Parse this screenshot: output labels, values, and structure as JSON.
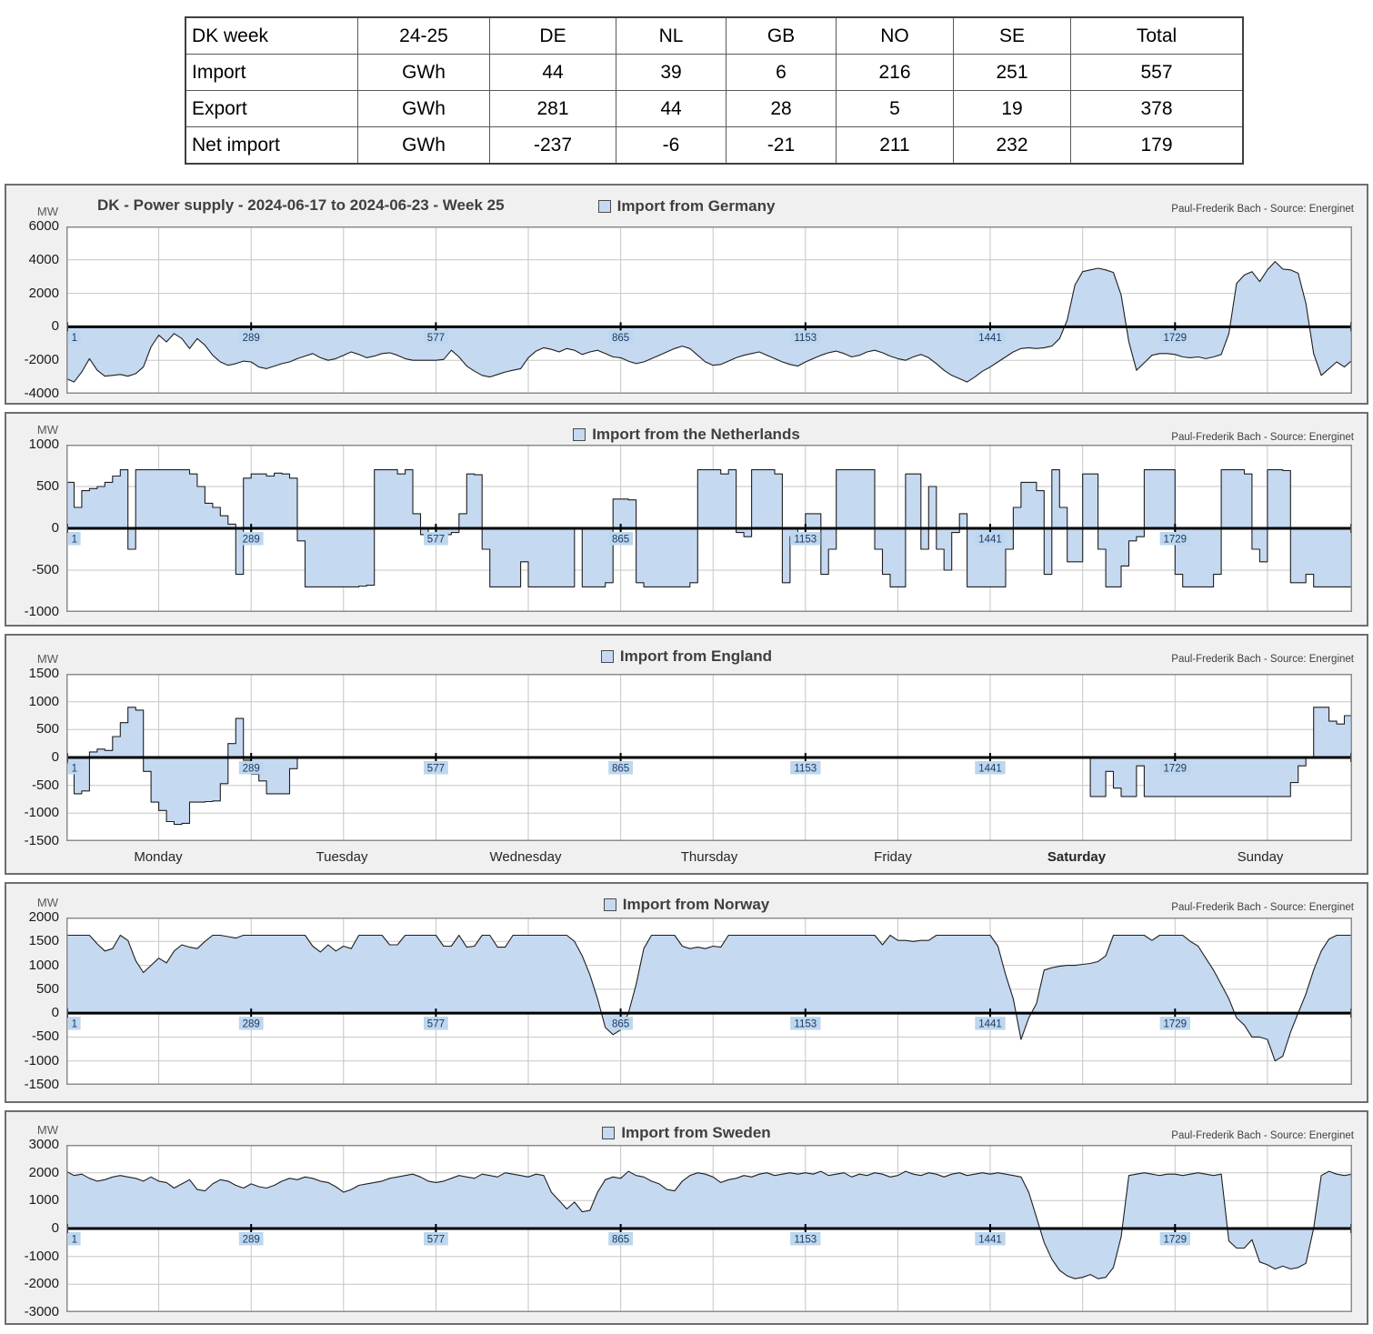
{
  "table": {
    "columns": [
      "DK week",
      "24-25",
      "DE",
      "NL",
      "GB",
      "NO",
      "SE",
      "Total"
    ],
    "rows": [
      [
        "Import",
        "GWh",
        "44",
        "39",
        "6",
        "216",
        "251",
        "557"
      ],
      [
        "Export",
        "GWh",
        "281",
        "44",
        "28",
        "5",
        "19",
        "378"
      ],
      [
        "Net import",
        "GWh",
        "-237",
        "-6",
        "-21",
        "211",
        "232",
        "179"
      ]
    ]
  },
  "colors": {
    "area_fill": "#c5d9f1",
    "line": "#1f1f1f",
    "zero_axis": "#000000",
    "grid": "#c6c6c6",
    "plot_border": "#8c8c8c",
    "panel_bg": "#f0f0f0",
    "xlabel_bg": "#bdd7ee",
    "xlabel_text": "#1f3864",
    "legend_text": "#3f3f3f"
  },
  "chart_data": [
    {
      "type": "area",
      "title": "DK - Power supply - 2024-06-17 to 2024-06-23 - Week 25",
      "legend": "Import from Germany",
      "source": "Paul-Frederik Bach - Source: Energinet",
      "unit": "MW",
      "ylabel": "MW",
      "ylim": [
        -4000,
        6000
      ],
      "ytick_step": 2000,
      "x_tick_labels": [
        "1",
        "289",
        "577",
        "865",
        "1153",
        "1441",
        "1729"
      ],
      "interp": "linear",
      "values": [
        -3100,
        -3300,
        -2700,
        -1900,
        -2600,
        -2950,
        -2900,
        -2850,
        -2950,
        -2800,
        -2400,
        -1200,
        -500,
        -900,
        -400,
        -700,
        -1300,
        -700,
        -1100,
        -1700,
        -2100,
        -2300,
        -2200,
        -2050,
        -2100,
        -2400,
        -2500,
        -2350,
        -2200,
        -2100,
        -1900,
        -1750,
        -1600,
        -1850,
        -2000,
        -1900,
        -1700,
        -1500,
        -1650,
        -1850,
        -1750,
        -1600,
        -1550,
        -1700,
        -1900,
        -2000,
        -2000,
        -2000,
        -2000,
        -1950,
        -1400,
        -1800,
        -2350,
        -2650,
        -2900,
        -3000,
        -2850,
        -2700,
        -2600,
        -2500,
        -1850,
        -1450,
        -1250,
        -1350,
        -1500,
        -1300,
        -1400,
        -1650,
        -1500,
        -1400,
        -1600,
        -1800,
        -1850,
        -2050,
        -2200,
        -2100,
        -1900,
        -1700,
        -1500,
        -1300,
        -1150,
        -1300,
        -1700,
        -2100,
        -2300,
        -2250,
        -2050,
        -1850,
        -1700,
        -1600,
        -1500,
        -1700,
        -1900,
        -2100,
        -2250,
        -2350,
        -2100,
        -1900,
        -1700,
        -1550,
        -1450,
        -1600,
        -1800,
        -1700,
        -1500,
        -1400,
        -1550,
        -1750,
        -1900,
        -2000,
        -1800,
        -1650,
        -1850,
        -2200,
        -2600,
        -2900,
        -3100,
        -3300,
        -3000,
        -2650,
        -2400,
        -2100,
        -1800,
        -1500,
        -1300,
        -1250,
        -1300,
        -1250,
        -1150,
        -700,
        400,
        2500,
        3300,
        3400,
        3500,
        3400,
        3250,
        1900,
        -900,
        -2600,
        -2150,
        -1700,
        -1600,
        -1600,
        -1650,
        -1800,
        -1850,
        -1800,
        -1900,
        -1800,
        -1650,
        -400,
        2600,
        3100,
        3300,
        2700,
        3400,
        3900,
        3450,
        3400,
        3200,
        1400,
        -1600,
        -2900,
        -2500,
        -2100,
        -2400,
        -2000
      ]
    },
    {
      "type": "area",
      "title": "",
      "legend": "Import from the Netherlands",
      "source": "Paul-Frederik Bach - Source: Energinet",
      "unit": "MW",
      "ylabel": "MW",
      "ylim": [
        -1000,
        1000
      ],
      "ytick_step": 500,
      "x_tick_labels": [
        "1",
        "289",
        "577",
        "865",
        "1153",
        "1441",
        "1729"
      ],
      "interp": "step",
      "values": [
        550,
        250,
        450,
        475,
        500,
        550,
        625,
        700,
        -250,
        700,
        700,
        700,
        700,
        700,
        700,
        700,
        650,
        500,
        300,
        250,
        150,
        50,
        -550,
        600,
        650,
        650,
        625,
        660,
        650,
        600,
        -150,
        -700,
        -700,
        -700,
        -700,
        -700,
        -700,
        -700,
        -690,
        -680,
        700,
        700,
        700,
        650,
        700,
        175,
        -75,
        0,
        -50,
        -75,
        -50,
        175,
        650,
        640,
        -250,
        -700,
        -700,
        -700,
        -700,
        -400,
        -700,
        -700,
        -700,
        -700,
        -700,
        -700,
        0,
        -700,
        -700,
        -700,
        -650,
        350,
        350,
        340,
        -650,
        -700,
        -700,
        -700,
        -700,
        -700,
        -700,
        -650,
        700,
        700,
        700,
        650,
        700,
        -50,
        -100,
        700,
        700,
        700,
        650,
        -650,
        -100,
        0,
        175,
        175,
        -550,
        -250,
        700,
        700,
        700,
        700,
        700,
        -250,
        -550,
        -700,
        -700,
        650,
        650,
        -250,
        500,
        -250,
        -500,
        -50,
        175,
        -700,
        -700,
        -700,
        -700,
        -700,
        -250,
        250,
        550,
        550,
        450,
        -550,
        700,
        250,
        -400,
        -400,
        650,
        650,
        -250,
        -700,
        -700,
        -450,
        -150,
        -100,
        700,
        700,
        700,
        700,
        -550,
        -700,
        -700,
        -700,
        -700,
        -550,
        700,
        700,
        700,
        650,
        -250,
        -400,
        700,
        700,
        690,
        -650,
        -650,
        -550,
        -700,
        -700,
        -700,
        -700,
        -700,
        -650
      ]
    },
    {
      "type": "area",
      "title": "",
      "legend": "Import from England",
      "source": "Paul-Frederik Bach - Source: Energinet",
      "unit": "MW",
      "ylabel": "MW",
      "ylim": [
        -1500,
        1500
      ],
      "ytick_step": 500,
      "x_tick_labels": [
        "1",
        "289",
        "577",
        "865",
        "1153",
        "1441",
        "1729"
      ],
      "day_labels": [
        "Monday",
        "Tuesday",
        "Wednesday",
        "Thursday",
        "Friday",
        "Saturday",
        "Sunday"
      ],
      "interp": "step",
      "values": [
        -100,
        -650,
        -600,
        100,
        150,
        125,
        375,
        625,
        900,
        850,
        -250,
        -800,
        -950,
        -1150,
        -1200,
        -1180,
        -800,
        -800,
        -790,
        -780,
        -470,
        250,
        700,
        -50,
        -300,
        -420,
        -650,
        -650,
        -650,
        -200,
        0,
        0,
        0,
        0,
        0,
        0,
        0,
        0,
        0,
        0,
        0,
        0,
        0,
        0,
        0,
        0,
        0,
        0,
        0,
        0,
        0,
        0,
        0,
        0,
        0,
        0,
        0,
        0,
        0,
        0,
        0,
        0,
        0,
        0,
        0,
        0,
        0,
        0,
        0,
        0,
        0,
        0,
        0,
        0,
        0,
        0,
        0,
        0,
        0,
        0,
        0,
        0,
        0,
        0,
        0,
        0,
        0,
        0,
        0,
        0,
        0,
        0,
        0,
        0,
        0,
        0,
        0,
        0,
        0,
        0,
        0,
        0,
        0,
        0,
        0,
        0,
        0,
        0,
        0,
        0,
        0,
        0,
        0,
        0,
        0,
        0,
        0,
        0,
        0,
        0,
        0,
        0,
        0,
        0,
        0,
        0,
        0,
        0,
        0,
        0,
        0,
        0,
        0,
        -700,
        -700,
        -250,
        -550,
        -700,
        -700,
        -150,
        -700,
        -700,
        -700,
        -700,
        -700,
        -700,
        -700,
        -700,
        -700,
        -700,
        -700,
        -700,
        -700,
        -700,
        -700,
        -700,
        -700,
        -700,
        -700,
        -450,
        -150,
        0,
        900,
        900,
        650,
        600,
        750,
        700
      ]
    },
    {
      "type": "area",
      "title": "",
      "legend": "Import from Norway",
      "source": "Paul-Frederik Bach - Source: Energinet",
      "unit": "MW",
      "ylabel": "MW",
      "ylim": [
        -1500,
        2000
      ],
      "ytick_step": 500,
      "x_tick_labels": [
        "1",
        "289",
        "577",
        "865",
        "1153",
        "1441",
        "1729"
      ],
      "interp": "linear",
      "values": [
        1630,
        1630,
        1630,
        1630,
        1450,
        1300,
        1350,
        1630,
        1520,
        1100,
        850,
        1000,
        1150,
        1050,
        1300,
        1430,
        1380,
        1350,
        1500,
        1630,
        1630,
        1600,
        1570,
        1630,
        1630,
        1630,
        1630,
        1630,
        1630,
        1630,
        1630,
        1630,
        1400,
        1280,
        1430,
        1300,
        1400,
        1350,
        1630,
        1630,
        1630,
        1630,
        1430,
        1430,
        1630,
        1630,
        1630,
        1630,
        1630,
        1400,
        1400,
        1630,
        1380,
        1400,
        1630,
        1630,
        1380,
        1380,
        1630,
        1630,
        1630,
        1630,
        1630,
        1630,
        1630,
        1630,
        1500,
        1200,
        800,
        300,
        -300,
        -450,
        -350,
        0,
        600,
        1350,
        1630,
        1630,
        1630,
        1630,
        1400,
        1350,
        1380,
        1350,
        1400,
        1380,
        1630,
        1630,
        1630,
        1630,
        1630,
        1630,
        1630,
        1630,
        1630,
        1630,
        1630,
        1630,
        1630,
        1630,
        1630,
        1630,
        1630,
        1630,
        1630,
        1630,
        1430,
        1630,
        1520,
        1520,
        1500,
        1520,
        1520,
        1630,
        1630,
        1630,
        1630,
        1630,
        1630,
        1630,
        1630,
        1400,
        800,
        300,
        -550,
        -100,
        200,
        900,
        950,
        980,
        1000,
        1000,
        1020,
        1040,
        1080,
        1200,
        1630,
        1630,
        1630,
        1630,
        1630,
        1520,
        1630,
        1630,
        1630,
        1630,
        1500,
        1400,
        1150,
        900,
        600,
        300,
        -100,
        -250,
        -500,
        -500,
        -550,
        -1000,
        -900,
        -400,
        0,
        400,
        900,
        1300,
        1550,
        1630,
        1630,
        1630
      ]
    },
    {
      "type": "area",
      "title": "",
      "legend": "Import from Sweden",
      "source": "Paul-Frederik Bach - Source: Energinet",
      "unit": "MW",
      "ylabel": "MW",
      "ylim": [
        -3000,
        3000
      ],
      "ytick_step": 1000,
      "x_tick_labels": [
        "1",
        "289",
        "577",
        "865",
        "1153",
        "1441",
        "1729"
      ],
      "interp": "linear",
      "values": [
        2050,
        1900,
        1950,
        1800,
        1700,
        1750,
        1850,
        1900,
        1850,
        1800,
        1700,
        1850,
        1700,
        1650,
        1450,
        1600,
        1750,
        1400,
        1350,
        1600,
        1750,
        1700,
        1550,
        1450,
        1600,
        1500,
        1450,
        1550,
        1700,
        1800,
        1750,
        1850,
        1800,
        1700,
        1650,
        1500,
        1300,
        1400,
        1550,
        1600,
        1650,
        1700,
        1800,
        1850,
        1900,
        1950,
        1850,
        1700,
        1650,
        1700,
        1800,
        1900,
        1850,
        1800,
        1950,
        1900,
        1850,
        2000,
        1950,
        1900,
        1850,
        1950,
        1900,
        1300,
        1000,
        700,
        950,
        600,
        650,
        1300,
        1750,
        1850,
        1800,
        2050,
        1900,
        1850,
        1700,
        1600,
        1400,
        1350,
        1700,
        1900,
        2000,
        1950,
        1850,
        1650,
        1750,
        1800,
        1900,
        1850,
        1950,
        2000,
        1900,
        1950,
        2000,
        1950,
        2000,
        1950,
        2050,
        1900,
        1950,
        2000,
        1850,
        1950,
        1900,
        2000,
        1950,
        1850,
        1900,
        2050,
        1950,
        1900,
        2000,
        1950,
        1850,
        1950,
        2000,
        1900,
        1950,
        2000,
        1950,
        2000,
        1950,
        1900,
        1850,
        1300,
        400,
        -500,
        -1100,
        -1500,
        -1700,
        -1800,
        -1750,
        -1650,
        -1800,
        -1750,
        -1400,
        -300,
        1900,
        1950,
        2000,
        1950,
        1900,
        1950,
        1950,
        1900,
        1950,
        2000,
        1950,
        1900,
        1950,
        -450,
        -700,
        -700,
        -400,
        -1200,
        -1300,
        -1450,
        -1350,
        -1450,
        -1400,
        -1250,
        0,
        1900,
        2050,
        1950,
        1900,
        1950
      ]
    }
  ]
}
